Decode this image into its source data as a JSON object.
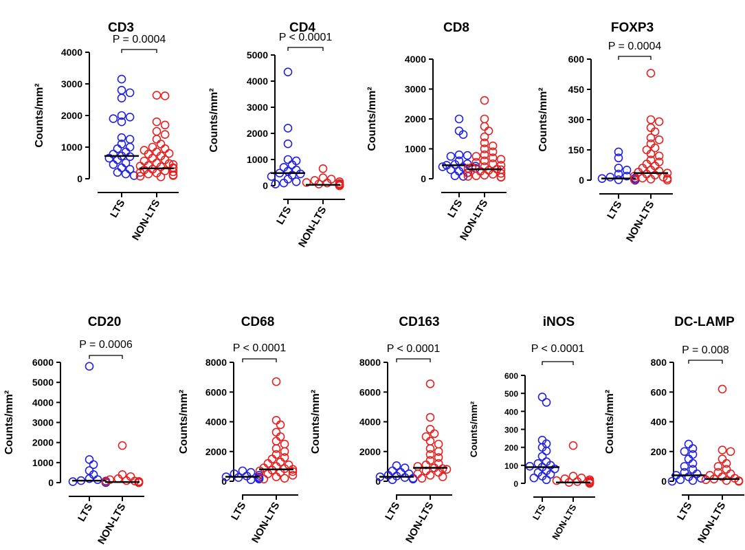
{
  "chart_data": [
    {
      "type": "scatter",
      "title": "CD3",
      "ylabel": "Counts/mm²",
      "ylim": [
        0,
        4000
      ],
      "yticks": [
        0,
        1000,
        2000,
        3000,
        4000
      ],
      "categories": [
        "LTS",
        "NON-LTS"
      ],
      "p_value": "P = 0.0004",
      "series": [
        {
          "name": "LTS",
          "color": "#1f1fe6",
          "median": 720,
          "values": [
            3150,
            2800,
            2720,
            2550,
            2000,
            1950,
            1900,
            1800,
            1300,
            1250,
            1100,
            1000,
            950,
            850,
            780,
            720,
            700,
            650,
            600,
            500,
            450,
            350,
            300,
            200,
            150,
            100
          ]
        },
        {
          "name": "NON-LTS",
          "color": "#e61f1f",
          "median": 330,
          "values": [
            2640,
            2620,
            1800,
            1700,
            1500,
            1400,
            1250,
            1100,
            1000,
            950,
            900,
            850,
            800,
            780,
            720,
            650,
            600,
            560,
            500,
            480,
            450,
            420,
            400,
            380,
            350,
            330,
            300,
            280,
            250,
            220,
            200,
            180,
            150,
            120,
            100,
            80,
            60
          ]
        }
      ]
    },
    {
      "type": "scatter",
      "title": "CD4",
      "ylabel": "Counts/mm²",
      "ylim": [
        0,
        5000
      ],
      "yticks": [
        0,
        1000,
        2000,
        3000,
        4000,
        5000
      ],
      "categories": [
        "LTS",
        "NON-LTS"
      ],
      "p_value": "P < 0.0001",
      "series": [
        {
          "name": "LTS",
          "color": "#1f1fe6",
          "median": 480,
          "values": [
            4350,
            2200,
            1600,
            1000,
            950,
            800,
            700,
            600,
            550,
            480,
            450,
            400,
            350,
            250,
            150,
            100,
            60
          ]
        },
        {
          "name": "NON-LTS",
          "color": "#e61f1f",
          "median": 30,
          "values": [
            650,
            300,
            250,
            200,
            150,
            120,
            100,
            80,
            60,
            50,
            40,
            30,
            25,
            20,
            15,
            10,
            8,
            5,
            5,
            3,
            2,
            0,
            0,
            0,
            0,
            0
          ]
        }
      ]
    },
    {
      "type": "scatter",
      "title": "CD8",
      "ylabel": "Counts/mm²",
      "ylim": [
        0,
        4000
      ],
      "yticks": [
        0,
        1000,
        2000,
        3000,
        4000
      ],
      "categories": [
        "LTS",
        "NON-LTS"
      ],
      "p_value": "",
      "series": [
        {
          "name": "LTS",
          "color": "#1f1fe6",
          "median": 450,
          "values": [
            2000,
            1600,
            1480,
            800,
            780,
            750,
            600,
            500,
            480,
            450,
            420,
            400,
            380,
            350,
            300,
            250,
            200,
            100,
            80
          ]
        },
        {
          "name": "NON-LTS",
          "color": "#e61f1f",
          "median": 320,
          "values": [
            2620,
            2000,
            1750,
            1600,
            1400,
            1200,
            1100,
            1000,
            900,
            800,
            750,
            700,
            650,
            600,
            550,
            500,
            450,
            400,
            380,
            350,
            320,
            300,
            280,
            250,
            200,
            180,
            150,
            120,
            100,
            80,
            60,
            50
          ]
        }
      ]
    },
    {
      "type": "scatter",
      "title": "FOXP3",
      "ylabel": "Counts/mm²",
      "ylim": [
        0,
        600
      ],
      "yticks": [
        0,
        150,
        300,
        450,
        600
      ],
      "categories": [
        "LTS",
        "NON-LTS"
      ],
      "p_value": "P = 0.0004",
      "series": [
        {
          "name": "LTS",
          "color": "#1f1fe6",
          "median": 8,
          "values": [
            140,
            110,
            60,
            50,
            30,
            20,
            15,
            10,
            8,
            5,
            3,
            2,
            0,
            0,
            0,
            0
          ]
        },
        {
          "name": "NON-LTS",
          "color": "#e61f1f",
          "median": 35,
          "values": [
            530,
            300,
            290,
            260,
            240,
            210,
            200,
            180,
            160,
            150,
            130,
            120,
            100,
            90,
            80,
            70,
            60,
            50,
            45,
            40,
            35,
            30,
            25,
            20,
            15,
            10,
            8,
            5,
            3,
            0
          ]
        }
      ]
    },
    {
      "type": "scatter",
      "title": "CD20",
      "ylabel": "Counts/mm²",
      "ylim": [
        0,
        6000
      ],
      "yticks": [
        0,
        1000,
        2000,
        3000,
        4000,
        5000,
        6000
      ],
      "categories": [
        "LTS",
        "NON-LTS"
      ],
      "p_value": "P = 0.0006",
      "series": [
        {
          "name": "LTS",
          "color": "#1f1fe6",
          "median": 100,
          "values": [
            5800,
            1150,
            900,
            600,
            400,
            200,
            150,
            100,
            80,
            50,
            30,
            10,
            0
          ]
        },
        {
          "name": "NON-LTS",
          "color": "#e61f1f",
          "median": 30,
          "values": [
            1850,
            400,
            300,
            200,
            150,
            100,
            80,
            60,
            50,
            40,
            30,
            20,
            10,
            5,
            0,
            0,
            0
          ]
        }
      ]
    },
    {
      "type": "scatter",
      "title": "CD68",
      "ylabel": "Counts/mm²",
      "ylim": [
        0,
        8000
      ],
      "yticks": [
        0,
        2000,
        4000,
        6000,
        8000
      ],
      "categories": [
        "LTS",
        "NON-LTS"
      ],
      "p_value": "P < 0.0001",
      "series": [
        {
          "name": "LTS",
          "color": "#1f1fe6",
          "median": 300,
          "values": [
            700,
            600,
            500,
            400,
            350,
            300,
            280,
            250,
            200,
            150,
            100
          ]
        },
        {
          "name": "NON-LTS",
          "color": "#e61f1f",
          "median": 800,
          "values": [
            6700,
            4100,
            3800,
            3300,
            3000,
            2700,
            2500,
            2200,
            2000,
            1800,
            1600,
            1500,
            1300,
            1200,
            1100,
            1000,
            900,
            850,
            800,
            750,
            700,
            650,
            600,
            500,
            400,
            300,
            200,
            150
          ]
        }
      ]
    },
    {
      "type": "scatter",
      "title": "CD163",
      "ylabel": "Counts/mm²",
      "ylim": [
        0,
        8000
      ],
      "yticks": [
        0,
        2000,
        4000,
        6000,
        8000
      ],
      "categories": [
        "LTS",
        "NON-LTS"
      ],
      "p_value": "P < 0.0001",
      "series": [
        {
          "name": "LTS",
          "color": "#1f1fe6",
          "median": 300,
          "values": [
            1050,
            900,
            700,
            600,
            500,
            400,
            350,
            300,
            250,
            200,
            150,
            100
          ]
        },
        {
          "name": "NON-LTS",
          "color": "#e61f1f",
          "median": 900,
          "values": [
            6550,
            4300,
            3500,
            3200,
            3000,
            2700,
            2500,
            2200,
            2000,
            1800,
            1600,
            1400,
            1200,
            1100,
            1000,
            900,
            850,
            800,
            700,
            600,
            500,
            400,
            300,
            200
          ]
        }
      ]
    },
    {
      "type": "scatter",
      "title": "iNOS",
      "ylabel": "Counts/mm²",
      "ylim": [
        0,
        600
      ],
      "yticks": [
        0,
        100,
        200,
        300,
        400,
        500,
        600
      ],
      "categories": [
        "LTS",
        "NON-LTS"
      ],
      "p_value": "P < 0.0001",
      "series": [
        {
          "name": "LTS",
          "color": "#1f1fe6",
          "median": 90,
          "values": [
            480,
            450,
            240,
            220,
            200,
            180,
            150,
            120,
            110,
            100,
            95,
            90,
            80,
            70,
            60,
            50,
            40,
            30,
            20
          ]
        },
        {
          "name": "NON-LTS",
          "color": "#e61f1f",
          "median": 5,
          "values": [
            210,
            40,
            30,
            25,
            20,
            15,
            12,
            10,
            8,
            5,
            3,
            2,
            0,
            0,
            0
          ]
        }
      ]
    },
    {
      "type": "scatter",
      "title": "DC-LAMP",
      "ylabel": "Counts/mm²",
      "ylim": [
        0,
        800
      ],
      "yticks": [
        0,
        200,
        400,
        600,
        800
      ],
      "categories": [
        "LTS",
        "NON-LTS"
      ],
      "p_value": "P = 0.008",
      "series": [
        {
          "name": "LTS",
          "color": "#1f1fe6",
          "median": 40,
          "values": [
            250,
            220,
            200,
            180,
            150,
            120,
            100,
            80,
            60,
            50,
            40,
            30,
            20,
            10,
            5,
            0
          ]
        },
        {
          "name": "NON-LTS",
          "color": "#e61f1f",
          "median": 15,
          "values": [
            620,
            210,
            200,
            150,
            120,
            100,
            80,
            60,
            50,
            40,
            30,
            20,
            15,
            10,
            5,
            3,
            0,
            0
          ]
        }
      ]
    }
  ]
}
